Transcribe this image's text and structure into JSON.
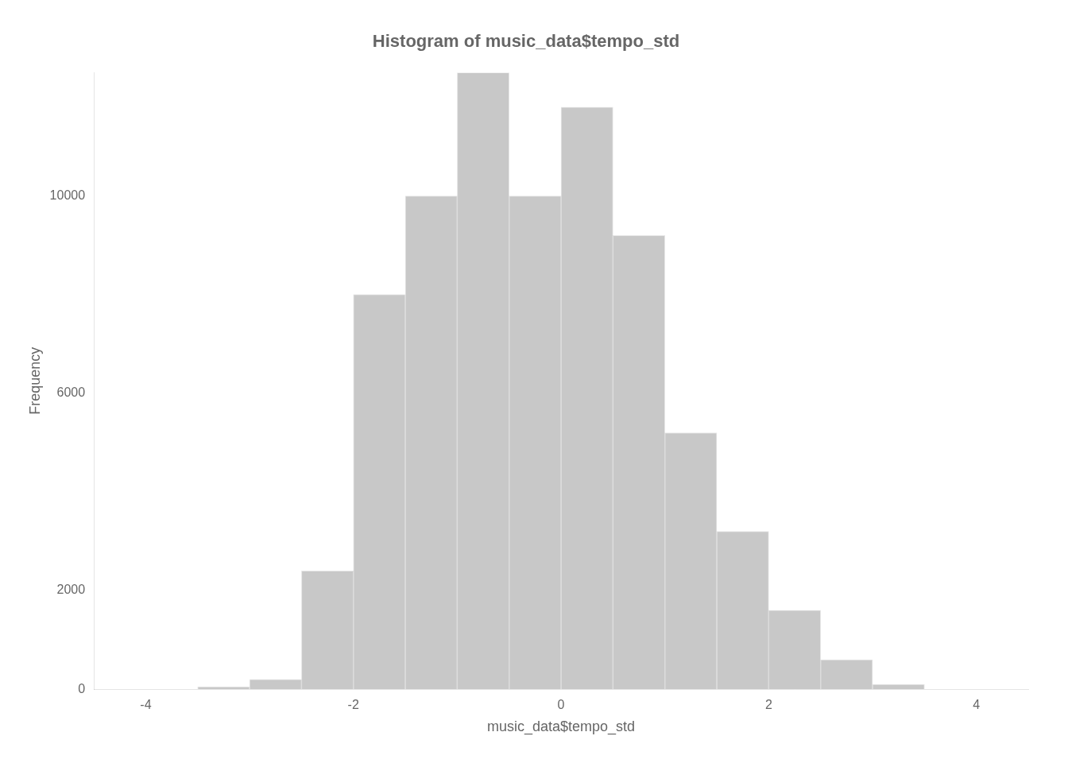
{
  "chart_data": {
    "type": "histogram",
    "title": "Histogram of music_data$tempo_std",
    "xlabel": "music_data$tempo_std",
    "ylabel": "Frequency",
    "bins": [
      -3.5,
      -3.0,
      -2.5,
      -2.0,
      -1.5,
      -1.0,
      -0.5,
      0.0,
      0.5,
      1.0,
      1.5,
      2.0,
      2.5,
      3.0,
      3.5
    ],
    "values": [
      50,
      200,
      2400,
      8000,
      10000,
      12500,
      10000,
      11800,
      9200,
      5200,
      3200,
      1600,
      600,
      100
    ],
    "color": "#c8c8c8",
    "xlim": [
      -4.5,
      4.5
    ],
    "xticks": [
      -4,
      -2,
      0,
      2,
      4
    ],
    "ylim": [
      0,
      12500
    ],
    "yticks": [
      0,
      2000,
      {
        "value": 4000,
        "label": ""
      },
      6000,
      {
        "value": 8000,
        "label": ""
      },
      10000,
      {
        "value": 12000,
        "label": ""
      }
    ],
    "grid": false,
    "legend": false
  }
}
